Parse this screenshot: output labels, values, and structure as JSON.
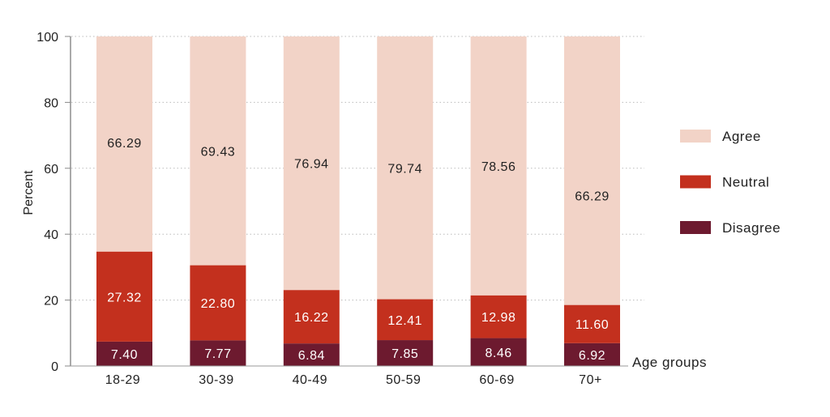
{
  "chart_data": {
    "type": "bar",
    "stacked": true,
    "title": "",
    "xlabel": "Age groups",
    "ylabel": "Percent",
    "ylim": [
      0,
      100
    ],
    "yticks": [
      0,
      20,
      40,
      60,
      80,
      100
    ],
    "grid": "horizontal dotted",
    "legend_position": "right",
    "categories": [
      "18-29",
      "30-39",
      "40-49",
      "50-59",
      "60-69",
      "70+"
    ],
    "series": [
      {
        "name": "Disagree",
        "color": "#6d1a2f",
        "values": [
          7.4,
          7.77,
          6.84,
          7.85,
          8.46,
          6.92
        ],
        "labels": [
          "7.40",
          "7.77",
          "6.84",
          "7.85",
          "8.46",
          "6.92"
        ]
      },
      {
        "name": "Neutral",
        "color": "#c3301e",
        "values": [
          27.32,
          22.8,
          16.22,
          12.41,
          12.98,
          11.6
        ],
        "labels": [
          "27.32",
          "22.80",
          "16.22",
          "12.41",
          "12.98",
          "11.60"
        ]
      },
      {
        "name": "Agree",
        "color": "#f2d3c7",
        "values": [
          66.29,
          69.43,
          76.94,
          79.74,
          78.56,
          66.29
        ],
        "labels": [
          "66.29",
          "69.43",
          "76.94",
          "79.74",
          "78.56",
          "66.29"
        ]
      }
    ],
    "legend_order": [
      "Agree",
      "Neutral",
      "Disagree"
    ]
  }
}
